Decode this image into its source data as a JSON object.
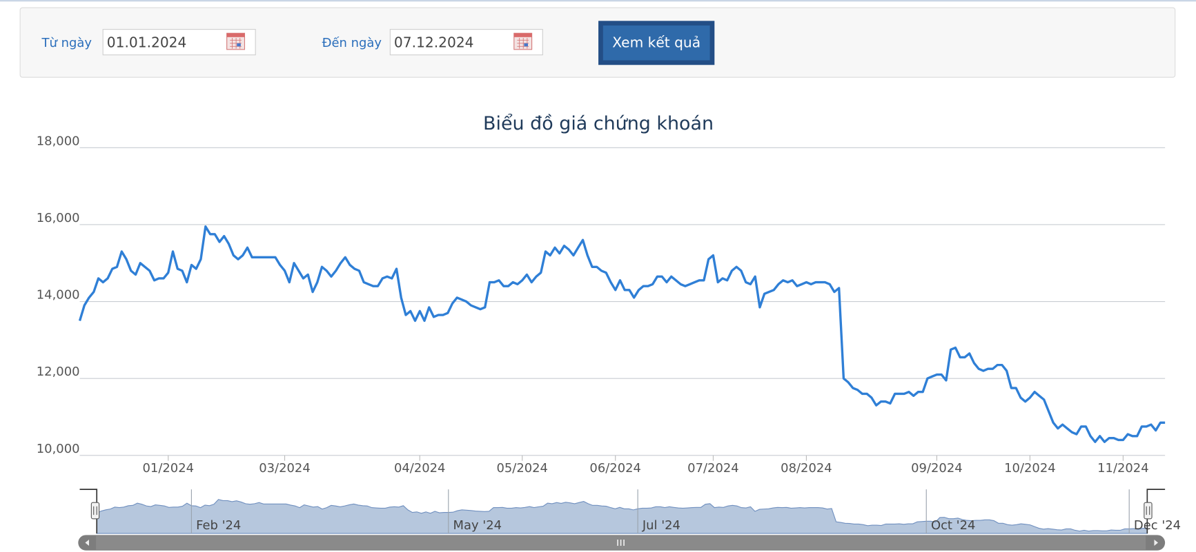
{
  "form": {
    "from_label": "Từ ngày",
    "from_value": "01.01.2024",
    "to_label": "Đến ngày",
    "to_value": "07.12.2024",
    "button": "Xem kết quả"
  },
  "chart_data": {
    "type": "line",
    "title": "Biểu đồ giá chứng khoán",
    "color": "#2f7fd6",
    "grid": true,
    "ylim": [
      10000,
      18000
    ],
    "yticks": [
      {
        "value": 10000,
        "label": "10,000"
      },
      {
        "value": 12000,
        "label": "12,000"
      },
      {
        "value": 14000,
        "label": "14,000"
      },
      {
        "value": 16000,
        "label": "16,000"
      },
      {
        "value": 18000,
        "label": "18,000"
      }
    ],
    "xlim": [
      0,
      233
    ],
    "xticks": [
      {
        "value": 19,
        "label": "01/2024"
      },
      {
        "value": 44,
        "label": "03/2024"
      },
      {
        "value": 73,
        "label": "04/2024"
      },
      {
        "value": 95,
        "label": "05/2024"
      },
      {
        "value": 115,
        "label": "06/2024"
      },
      {
        "value": 136,
        "label": "07/2024"
      },
      {
        "value": 156,
        "label": "08/2024"
      },
      {
        "value": 184,
        "label": "09/2024"
      },
      {
        "value": 204,
        "label": "10/2024"
      },
      {
        "value": 224,
        "label": "11/2024"
      }
    ],
    "navigator_xticks": [
      {
        "value": 21,
        "label": "Feb '24"
      },
      {
        "value": 78,
        "label": "May '24"
      },
      {
        "value": 120,
        "label": "Jul '24"
      },
      {
        "value": 184,
        "label": "Oct '24"
      },
      {
        "value": 229,
        "label": "Dec '24"
      }
    ],
    "values": [
      13500,
      13900,
      14100,
      14250,
      14600,
      14500,
      14600,
      14850,
      14900,
      15300,
      15100,
      14800,
      14700,
      15000,
      14900,
      14800,
      14550,
      14600,
      14600,
      14750,
      15300,
      14850,
      14800,
      14500,
      14950,
      14850,
      15100,
      15950,
      15750,
      15750,
      15550,
      15700,
      15500,
      15200,
      15100,
      15200,
      15400,
      15150,
      15150,
      15150,
      15150,
      15150,
      15150,
      14950,
      14800,
      14500,
      15000,
      14800,
      14600,
      14700,
      14250,
      14500,
      14900,
      14800,
      14650,
      14800,
      15000,
      15150,
      14950,
      14850,
      14800,
      14500,
      14450,
      14400,
      14400,
      14600,
      14650,
      14600,
      14850,
      14100,
      13650,
      13750,
      13500,
      13750,
      13500,
      13850,
      13600,
      13650,
      13650,
      13700,
      13950,
      14100,
      14050,
      14000,
      13900,
      13850,
      13800,
      13850,
      14500,
      14500,
      14550,
      14400,
      14400,
      14500,
      14450,
      14550,
      14700,
      14500,
      14650,
      14750,
      15300,
      15200,
      15400,
      15250,
      15450,
      15350,
      15200,
      15400,
      15600,
      15200,
      14900,
      14900,
      14800,
      14750,
      14500,
      14300,
      14550,
      14300,
      14300,
      14100,
      14300,
      14400,
      14400,
      14450,
      14650,
      14650,
      14500,
      14650,
      14550,
      14450,
      14400,
      14450,
      14500,
      14550,
      14550,
      15100,
      15200,
      14500,
      14600,
      14550,
      14800,
      14900,
      14800,
      14500,
      14450,
      14650,
      13850,
      14200,
      14250,
      14300,
      14450,
      14550,
      14500,
      14550,
      14400,
      14450,
      14500,
      14450,
      14500,
      14500,
      14500,
      14450,
      14250,
      14350,
      12000,
      11900,
      11750,
      11700,
      11600,
      11600,
      11500,
      11300,
      11400,
      11400,
      11350,
      11600,
      11600,
      11600,
      11650,
      11550,
      11650,
      11650,
      12000,
      12050,
      12100,
      12100,
      11950,
      12750,
      12800,
      12550,
      12550,
      12650,
      12400,
      12250,
      12200,
      12250,
      12250,
      12350,
      12350,
      12200,
      11750,
      11750,
      11500,
      11400,
      11500,
      11650,
      11550,
      11450,
      11150,
      10850,
      10700,
      10800,
      10700,
      10600,
      10550,
      10750,
      10750,
      10500,
      10350,
      10500,
      10350,
      10450,
      10450,
      10400,
      10400,
      10550,
      10500,
      10500,
      10750,
      10750,
      10800,
      10650,
      10850,
      10850
    ]
  }
}
